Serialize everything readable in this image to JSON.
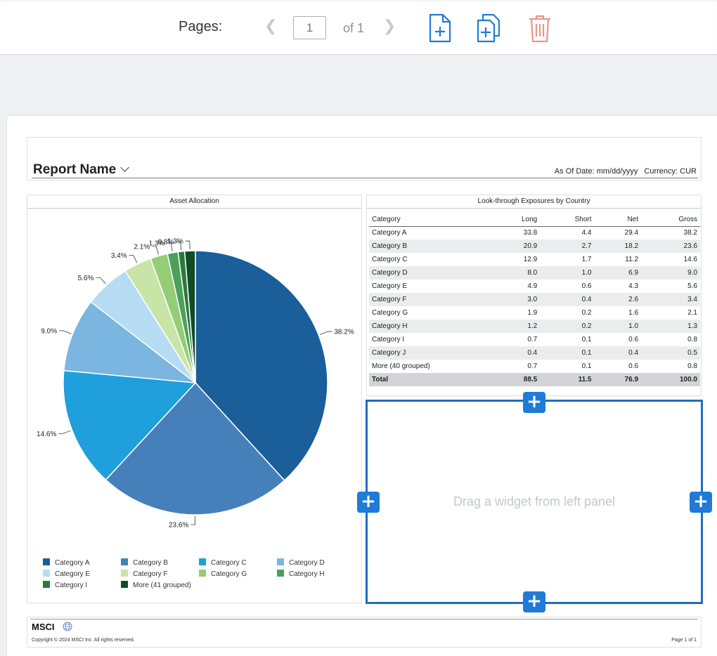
{
  "toolbar": {
    "pages_label": "Pages:",
    "current_page": "1",
    "of_label": "of 1",
    "prev_icon": "chevron-left-icon",
    "next_icon": "chevron-right-icon",
    "add_page_icon": "add-page-icon",
    "duplicate_page_icon": "duplicate-page-icon",
    "delete_page_icon": "trash-icon",
    "accent_color": "#1f7ad8",
    "delete_color": "#e8968c"
  },
  "report": {
    "name": "Report Name",
    "as_of": "As Of Date: mm/dd/yyyy",
    "currency": "Currency: CUR"
  },
  "asset_allocation": {
    "title": "Asset Allocation",
    "legend": [
      {
        "label": "Category A",
        "color": "#1a5e9a"
      },
      {
        "label": "Category B",
        "color": "#4580bb"
      },
      {
        "label": "Category C",
        "color": "#1f9fdb"
      },
      {
        "label": "Category D",
        "color": "#7ab6e0"
      },
      {
        "label": "Category E",
        "color": "#b6dcf4"
      },
      {
        "label": "Category F",
        "color": "#c9e4a7"
      },
      {
        "label": "Category G",
        "color": "#95cc76"
      },
      {
        "label": "Category H",
        "color": "#4ca05a"
      },
      {
        "label": "Category I",
        "color": "#2b7a3b"
      },
      {
        "label": "More (41 grouped)",
        "color": "#0e4d27"
      }
    ]
  },
  "chart_data": {
    "type": "pie",
    "title": "Asset Allocation",
    "categories": [
      "Category A",
      "Category B",
      "Category C",
      "Category D",
      "Category E",
      "Category F",
      "Category G",
      "Category H",
      "Category I",
      "More (41 grouped)"
    ],
    "values": [
      38.2,
      23.6,
      14.6,
      9.0,
      5.6,
      3.4,
      2.1,
      1.3,
      0.8,
      1.3
    ],
    "labels": [
      "38.2%",
      "23.6%",
      "14.6%",
      "9.0%",
      "5.6%",
      "3.4%",
      "2.1%",
      "1.3%",
      "0.8%",
      "1.3%"
    ],
    "colors": [
      "#1a5e9a",
      "#4580bb",
      "#1f9fdb",
      "#7ab6e0",
      "#b6dcf4",
      "#c9e4a7",
      "#95cc76",
      "#4ca05a",
      "#2b7a3b",
      "#0e4d27"
    ],
    "legend_position": "bottom"
  },
  "exposures": {
    "title": "Look-through Exposures by Country",
    "columns": [
      "Category",
      "Long",
      "Short",
      "Net",
      "Gross"
    ],
    "rows": [
      [
        "Category A",
        "33.8",
        "4.4",
        "29.4",
        "38.2"
      ],
      [
        "Category B",
        "20.9",
        "2.7",
        "18.2",
        "23.6"
      ],
      [
        "Category C",
        "12.9",
        "1.7",
        "11.2",
        "14.6"
      ],
      [
        "Category D",
        "8.0",
        "1.0",
        "6.9",
        "9.0"
      ],
      [
        "Category E",
        "4.9",
        "0.6",
        "4.3",
        "5.6"
      ],
      [
        "Category F",
        "3.0",
        "0.4",
        "2.6",
        "3.4"
      ],
      [
        "Category G",
        "1.9",
        "0.2",
        "1.6",
        "2.1"
      ],
      [
        "Category H",
        "1.2",
        "0.2",
        "1.0",
        "1.3"
      ],
      [
        "Category I",
        "0.7",
        "0.1",
        "0.6",
        "0.8"
      ],
      [
        "Category J",
        "0.4",
        "0.1",
        "0.4",
        "0.5"
      ],
      [
        "More (40 grouped)",
        "0.7",
        "0.1",
        "0.6",
        "0.8"
      ]
    ],
    "total": [
      "Total",
      "88.5",
      "11.5",
      "76.9",
      "100.0"
    ]
  },
  "dropzone": {
    "text": "Drag a widget from left panel",
    "plus": "+"
  },
  "footer": {
    "logo": "MSCI",
    "copyright": "Copyright © 2024 MSCI Inc. All rights reserved.",
    "page": "Page 1 of 1"
  }
}
